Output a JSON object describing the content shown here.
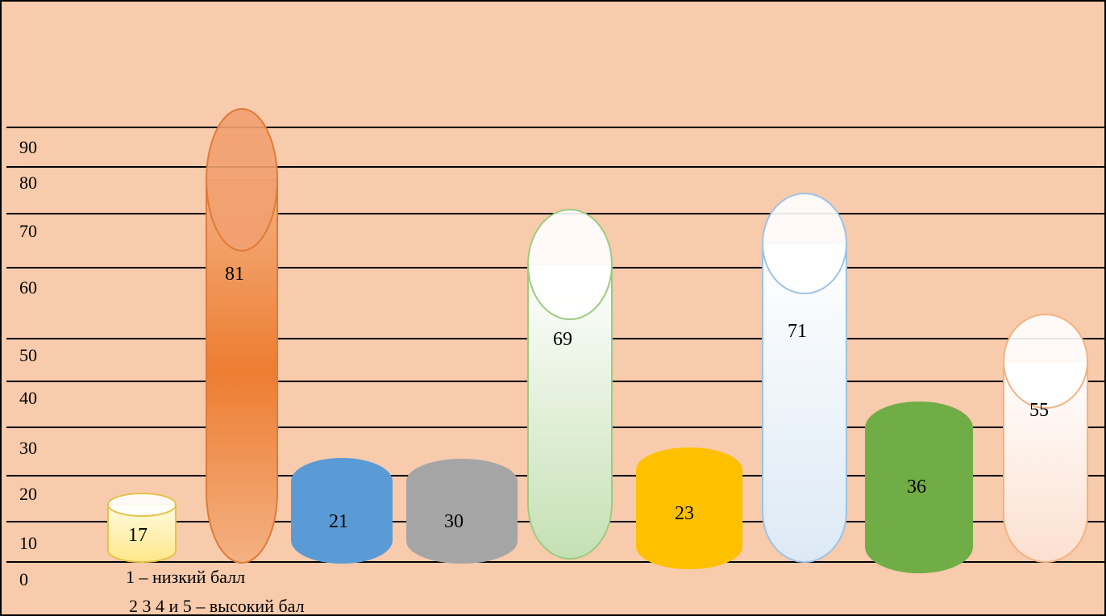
{
  "chart_data": {
    "type": "bar",
    "title": "",
    "xlabel": "",
    "ylabel": "",
    "y_tick_labels": [
      "0",
      "10",
      "20",
      "30",
      "40",
      "50",
      "60",
      "70",
      "80",
      "90"
    ],
    "grid": true,
    "legend": [],
    "colors": {
      "background": "#f7cbac",
      "grid": "#000000",
      "border": "#000000"
    },
    "bars": [
      {
        "value": 17,
        "label": "17",
        "fill": "#fff6c2",
        "stroke": "#e6c24a",
        "style": "cylinder-light"
      },
      {
        "value": 81,
        "label": "81",
        "fill": "#ed7d31",
        "stroke": "#e07a36",
        "style": "capsule-gradient"
      },
      {
        "value": 21,
        "label": "21",
        "fill": "#5b9bd5",
        "stroke": "#5b9bd5",
        "style": "cylinder-solid"
      },
      {
        "value": 30,
        "label": "30",
        "fill": "#a5a5a5",
        "stroke": "#a5a5a5",
        "style": "cylinder-solid"
      },
      {
        "value": 69,
        "label": "69",
        "fill": "#c5e0b4",
        "stroke": "#9ccb80",
        "style": "capsule-light"
      },
      {
        "value": 23,
        "label": "23",
        "fill": "#ffc000",
        "stroke": "#ffc000",
        "style": "cylinder-solid"
      },
      {
        "value": 71,
        "label": "71",
        "fill": "#dce9f5",
        "stroke": "#9dc3e6",
        "style": "capsule-light"
      },
      {
        "value": 36,
        "label": "36",
        "fill": "#70ad47",
        "stroke": "#70ad47",
        "style": "cylinder-solid"
      },
      {
        "value": 55,
        "label": "55",
        "fill": "#fbe0cf",
        "stroke": "#f4b183",
        "style": "capsule-light"
      }
    ]
  },
  "notes": {
    "line1": "1 – низкий балл",
    "line2": "2 3 4 и 5 – высокий бал"
  }
}
